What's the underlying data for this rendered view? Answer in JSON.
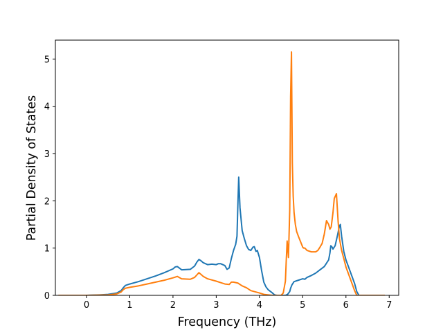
{
  "chart_data": {
    "type": "line",
    "title": "",
    "xlabel": "Frequency (THz)",
    "ylabel": "Partial Density of States",
    "xlim": [
      -0.72,
      7.22
    ],
    "ylim": [
      0,
      5.4
    ],
    "xticks": [
      0,
      1,
      2,
      3,
      4,
      5,
      6,
      7
    ],
    "yticks": [
      0,
      1,
      2,
      3,
      4,
      5
    ],
    "grid": false,
    "legend": "none",
    "series": [
      {
        "color": "#1f77b4",
        "x": [
          -0.65,
          0.0,
          0.3,
          0.5,
          0.7,
          0.8,
          0.85,
          0.9,
          1.0,
          1.2,
          1.4,
          1.6,
          1.8,
          2.0,
          2.05,
          2.1,
          2.2,
          2.4,
          2.5,
          2.55,
          2.6,
          2.65,
          2.7,
          2.8,
          2.9,
          3.0,
          3.05,
          3.1,
          3.15,
          3.2,
          3.25,
          3.3,
          3.35,
          3.4,
          3.45,
          3.48,
          3.5,
          3.52,
          3.55,
          3.6,
          3.65,
          3.7,
          3.75,
          3.8,
          3.85,
          3.88,
          3.92,
          3.95,
          4.0,
          4.05,
          4.1,
          4.15,
          4.2,
          4.3,
          4.35,
          4.4,
          4.5,
          4.6,
          4.65,
          4.7,
          4.72,
          4.75,
          4.8,
          4.9,
          5.0,
          5.05,
          5.1,
          5.2,
          5.3,
          5.4,
          5.5,
          5.6,
          5.63,
          5.65,
          5.68,
          5.7,
          5.75,
          5.8,
          5.85,
          5.87,
          5.9,
          5.95,
          6.0,
          6.1,
          6.2,
          6.25,
          6.3,
          6.5,
          6.9
        ],
        "values": [
          0,
          0,
          0.01,
          0.02,
          0.05,
          0.1,
          0.16,
          0.21,
          0.24,
          0.29,
          0.35,
          0.41,
          0.48,
          0.56,
          0.6,
          0.61,
          0.54,
          0.55,
          0.62,
          0.7,
          0.76,
          0.73,
          0.69,
          0.65,
          0.66,
          0.65,
          0.67,
          0.67,
          0.65,
          0.63,
          0.55,
          0.58,
          0.78,
          0.95,
          1.08,
          1.25,
          1.9,
          2.5,
          1.85,
          1.37,
          1.2,
          1.05,
          0.97,
          0.95,
          1.02,
          1.03,
          0.93,
          0.95,
          0.8,
          0.52,
          0.28,
          0.18,
          0.12,
          0.05,
          0.01,
          0,
          0,
          0,
          0.02,
          0.08,
          0.15,
          0.22,
          0.29,
          0.32,
          0.35,
          0.34,
          0.38,
          0.42,
          0.47,
          0.54,
          0.61,
          0.75,
          0.9,
          1.05,
          1.02,
          0.98,
          1.05,
          1.25,
          1.47,
          1.5,
          1.25,
          0.93,
          0.75,
          0.5,
          0.25,
          0.08,
          0,
          0,
          0
        ]
      },
      {
        "color": "#ff7f0e",
        "x": [
          -0.65,
          0.0,
          0.3,
          0.5,
          0.7,
          0.8,
          0.85,
          0.9,
          1.0,
          1.2,
          1.4,
          1.6,
          1.8,
          2.0,
          2.1,
          2.2,
          2.4,
          2.5,
          2.55,
          2.6,
          2.65,
          2.7,
          2.8,
          3.0,
          3.1,
          3.2,
          3.3,
          3.35,
          3.4,
          3.5,
          3.6,
          3.7,
          3.8,
          4.0,
          4.1,
          4.2,
          4.3,
          4.4,
          4.5,
          4.55,
          4.6,
          4.62,
          4.64,
          4.67,
          4.7,
          4.72,
          4.74,
          4.76,
          4.78,
          4.8,
          4.83,
          4.86,
          4.9,
          5.0,
          5.02,
          5.05,
          5.1,
          5.2,
          5.3,
          5.35,
          5.4,
          5.45,
          5.5,
          5.55,
          5.6,
          5.63,
          5.66,
          5.7,
          5.73,
          5.78,
          5.82,
          5.85,
          5.87,
          5.9,
          5.95,
          6.0,
          6.1,
          6.2,
          6.25,
          6.3,
          6.5,
          6.9
        ],
        "values": [
          0,
          0,
          0.005,
          0.01,
          0.03,
          0.07,
          0.12,
          0.15,
          0.17,
          0.2,
          0.24,
          0.28,
          0.32,
          0.37,
          0.4,
          0.35,
          0.34,
          0.38,
          0.43,
          0.48,
          0.44,
          0.4,
          0.35,
          0.3,
          0.27,
          0.24,
          0.23,
          0.28,
          0.28,
          0.26,
          0.2,
          0.16,
          0.1,
          0.05,
          0.02,
          0.01,
          0,
          0,
          0,
          0.05,
          0.3,
          0.75,
          1.15,
          0.8,
          1.8,
          4.2,
          5.15,
          2.8,
          2.1,
          1.75,
          1.5,
          1.35,
          1.25,
          1.02,
          1.0,
          1.0,
          0.95,
          0.92,
          0.92,
          0.95,
          1.02,
          1.1,
          1.3,
          1.58,
          1.5,
          1.4,
          1.45,
          1.75,
          2.05,
          2.15,
          1.55,
          1.2,
          1.1,
          0.95,
          0.78,
          0.6,
          0.35,
          0.1,
          0,
          0,
          0,
          0
        ]
      }
    ]
  }
}
